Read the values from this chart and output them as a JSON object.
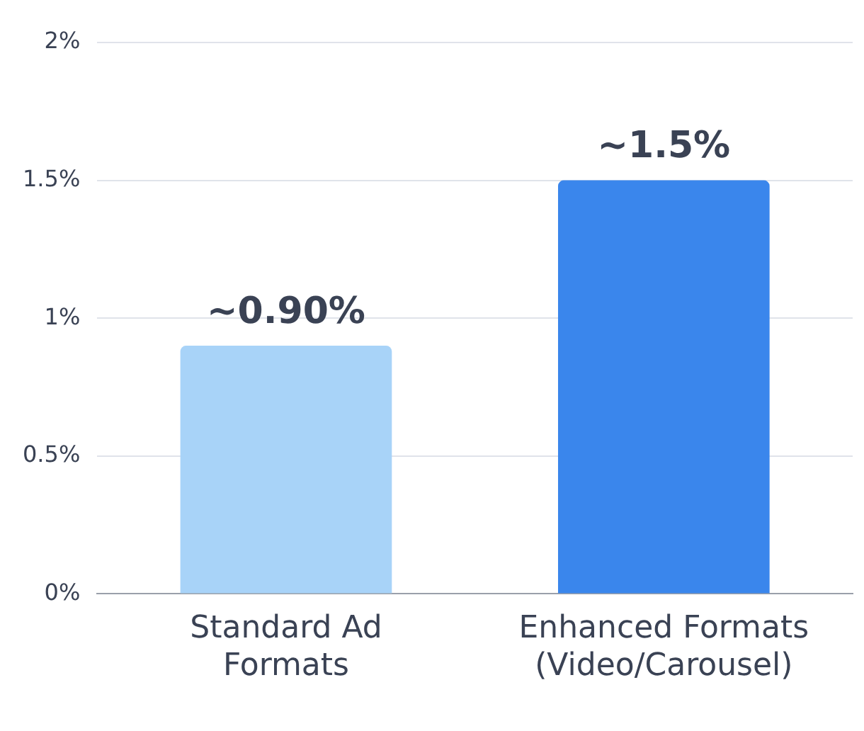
{
  "chart_data": {
    "type": "bar",
    "categories": [
      "Standard Ad Formats",
      "Enhanced Formats (Video/Carousel)"
    ],
    "series": [
      {
        "values": [
          0.9,
          1.5
        ],
        "colors": [
          "#a8d3f8",
          "#3a86ec"
        ],
        "value_labels": [
          "~0.90%",
          "~1.5%"
        ]
      }
    ],
    "ylim": [
      0,
      2
    ],
    "yticks": [
      {
        "value": 0,
        "label": "0%"
      },
      {
        "value": 0.5,
        "label": "0.5%"
      },
      {
        "value": 1,
        "label": "1%"
      },
      {
        "value": 1.5,
        "label": "1.5%"
      },
      {
        "value": 2,
        "label": "2%"
      }
    ],
    "grid": "y",
    "legend": false
  }
}
